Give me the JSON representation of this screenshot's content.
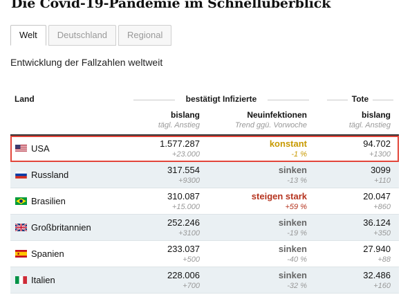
{
  "title": "Die Covid-19-Pandemie im Schnellüberblick",
  "tabs": [
    {
      "label": "Welt",
      "active": true
    },
    {
      "label": "Deutschland",
      "active": false
    },
    {
      "label": "Regional",
      "active": false
    }
  ],
  "subtitle": "Entwicklung der Fallzahlen weltweit",
  "table": {
    "col_land": "Land",
    "group_infected": "bestätigt Infizierte",
    "group_deaths": "Tote",
    "col_bislang": "bislang",
    "col_bislang_sub": "tägl. Anstieg",
    "col_new": "Neuinfektionen",
    "col_new_sub": "Trend ggü. Vorwoche",
    "col_tote": "bislang",
    "col_tote_sub": "tägl. Anstieg",
    "rows": [
      {
        "country": "USA",
        "flag": "us-flag-icon",
        "cases": "1.577.287",
        "cases_delta": "+23.000",
        "trend": "konstant",
        "trend_pct": "-1 %",
        "trend_color": "#c89a00",
        "deaths": "94.702",
        "deaths_delta": "+1300"
      },
      {
        "country": "Russland",
        "flag": "ru-flag-icon",
        "cases": "317.554",
        "cases_delta": "+9300",
        "trend": "sinken",
        "trend_pct": "-13 %",
        "trend_color": "#666666",
        "deaths": "3099",
        "deaths_delta": "+110"
      },
      {
        "country": "Brasilien",
        "flag": "br-flag-icon",
        "cases": "310.087",
        "cases_delta": "+15.000",
        "trend": "steigen stark",
        "trend_pct": "+59 %",
        "trend_color": "#b5331e",
        "deaths": "20.047",
        "deaths_delta": "+860"
      },
      {
        "country": "Großbritannien",
        "flag": "uk-flag-icon",
        "cases": "252.246",
        "cases_delta": "+3100",
        "trend": "sinken",
        "trend_pct": "-19 %",
        "trend_color": "#666666",
        "deaths": "36.124",
        "deaths_delta": "+350"
      },
      {
        "country": "Spanien",
        "flag": "es-flag-icon",
        "cases": "233.037",
        "cases_delta": "+500",
        "trend": "sinken",
        "trend_pct": "-40 %",
        "trend_color": "#666666",
        "deaths": "27.940",
        "deaths_delta": "+88"
      },
      {
        "country": "Italien",
        "flag": "it-flag-icon",
        "cases": "228.006",
        "cases_delta": "+700",
        "trend": "sinken",
        "trend_pct": "-32 %",
        "trend_color": "#666666",
        "deaths": "32.486",
        "deaths_delta": "+160"
      }
    ]
  },
  "colors": {
    "highlight_border": "#e2453a",
    "row_shade": "#eaf0f3",
    "trend_constant": "#c89a00",
    "trend_rising": "#b5331e",
    "trend_falling": "#666666"
  }
}
